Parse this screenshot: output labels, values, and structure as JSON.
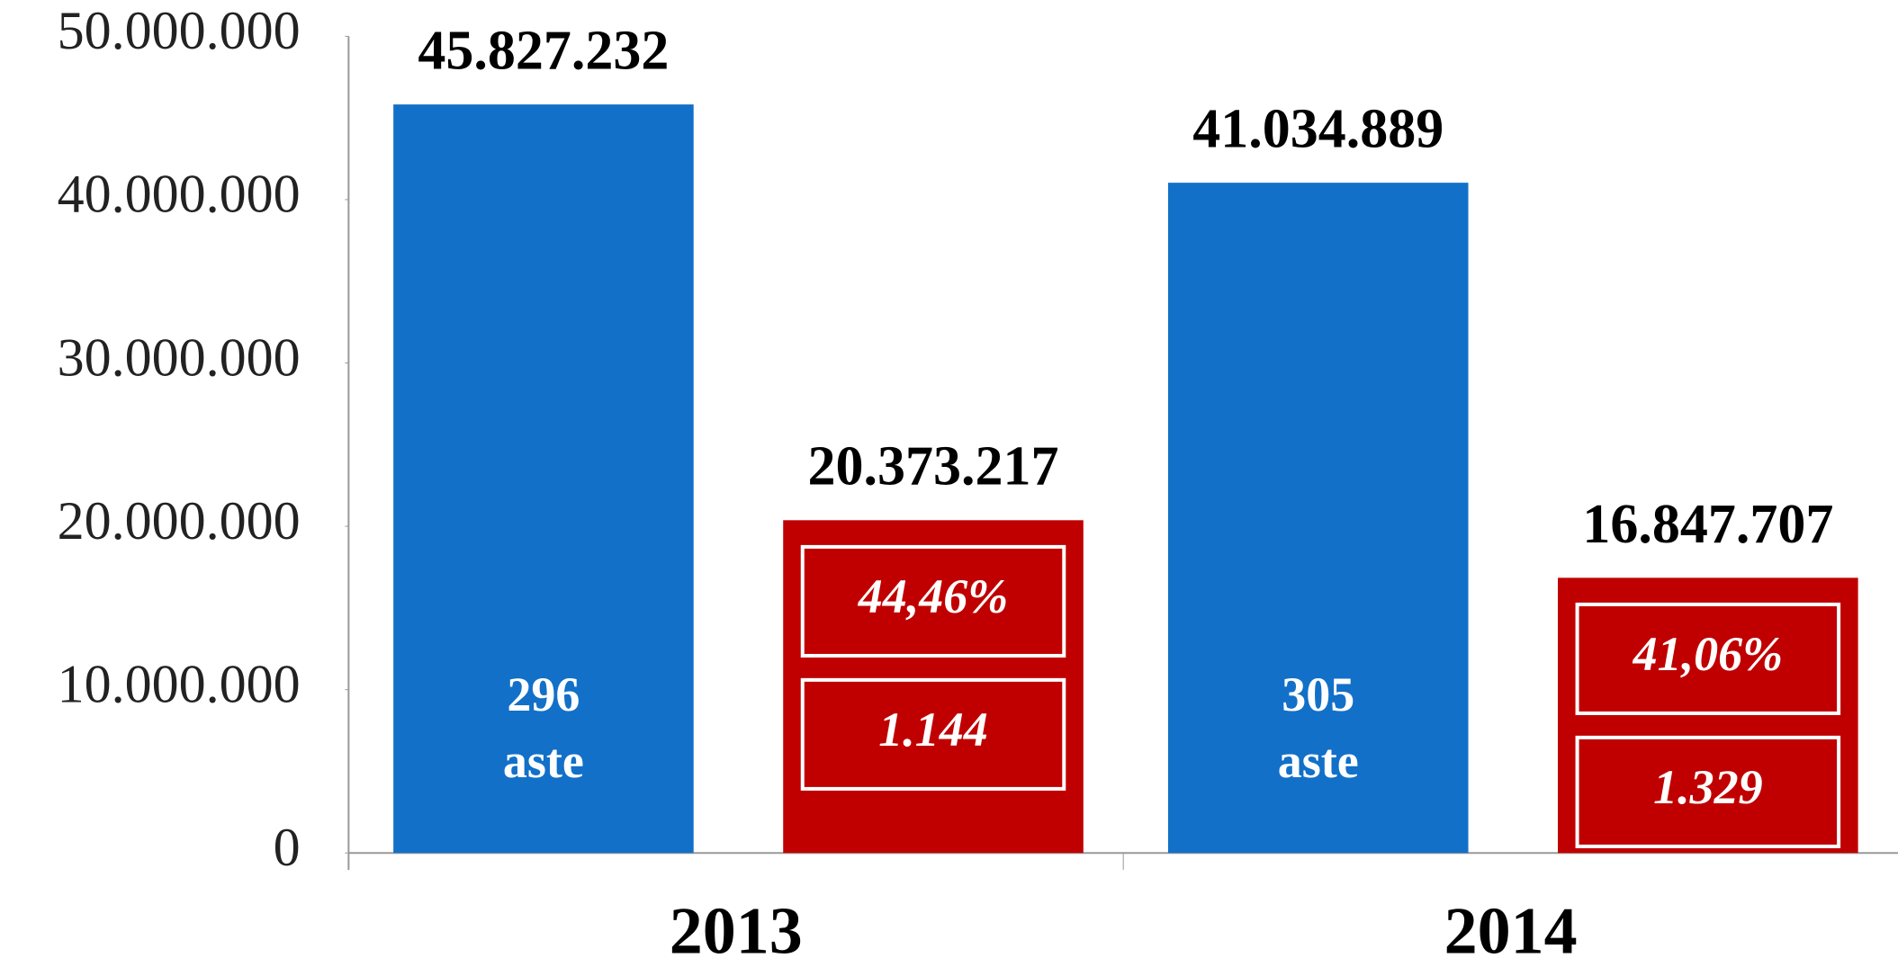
{
  "chart_data": {
    "type": "bar",
    "categories": [
      "2013",
      "2014"
    ],
    "series": [
      {
        "color": "#1270c8",
        "values": [
          45827232,
          41034889
        ],
        "value_labels": [
          "45.827.232",
          "41.034.889"
        ],
        "inner_labels": [
          [
            "296",
            "aste"
          ],
          [
            "305",
            "aste"
          ]
        ]
      },
      {
        "color": "#c00000",
        "values": [
          20373217,
          16847707
        ],
        "value_labels": [
          "20.373.217",
          "16.847.707"
        ],
        "boxes": [
          [
            "44,46%",
            "1.144"
          ],
          [
            "41,06%",
            "1.329"
          ]
        ]
      }
    ],
    "ylim": [
      0,
      50000000
    ],
    "yticks": [
      0,
      {
        "value": 10000000,
        "label": "10.000.000"
      },
      {
        "value": 20000000,
        "label": "20.000.000"
      },
      {
        "value": 30000000,
        "label": "30.000.000"
      },
      {
        "value": 40000000,
        "label": "40.000.000"
      },
      {
        "value": 50000000,
        "label": "50.000.000"
      }
    ],
    "grid": false
  }
}
